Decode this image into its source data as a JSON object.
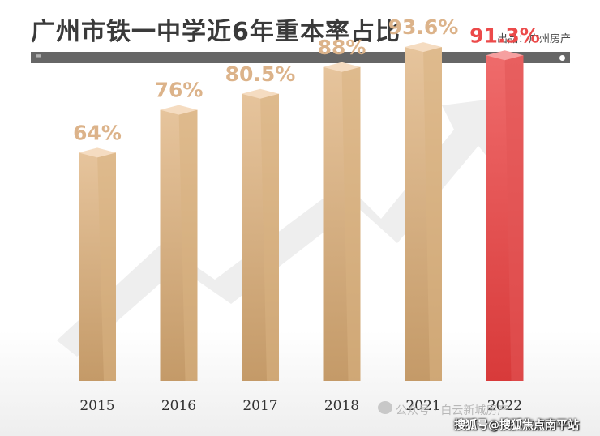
{
  "header": {
    "title": "广州市铁一中学近6年重本率占比",
    "source": "出品：广州房产",
    "menu_glyph": "≡"
  },
  "footer": {
    "watermark": "公众号 · 白云新城房产",
    "credit": "搜狐号@搜狐焦点南平站"
  },
  "colors": {
    "bar_normal_front": "#e6c49c",
    "bar_normal_top": "#f5dcc1",
    "label_normal": "#dcb38a",
    "bar_highlight_front": "#ef6b6b",
    "bar_highlight_top": "#f6a0a0",
    "label_highlight": "#ec4a4a",
    "arrow": "#eeeeee"
  },
  "chart_data": {
    "type": "bar",
    "categories": [
      "2015",
      "2016",
      "2017",
      "2018",
      "2021",
      "2022"
    ],
    "values": [
      64,
      76,
      80.5,
      88,
      93.6,
      91.3
    ],
    "data_labels": [
      "64%",
      "76%",
      "80.5%",
      "88%",
      "93.6%",
      "91.3%"
    ],
    "highlight": [
      "2022"
    ],
    "title": "广州市铁一中学近6年重本率占比",
    "xlabel": "",
    "ylabel": "",
    "ylim": [
      0,
      100
    ],
    "grid": false,
    "legend": "none"
  }
}
